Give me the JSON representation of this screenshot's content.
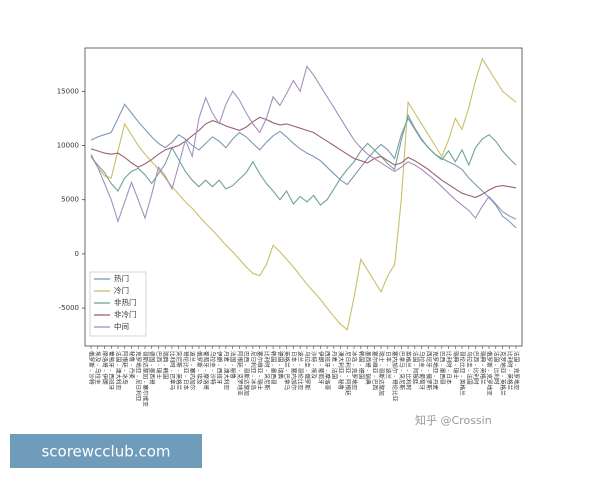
{
  "chart_data": {
    "type": "line",
    "categories": [
      "俄罗斯 - 沙特",
      "埃及 - 乌拉圭",
      "摩洛哥 - 伊朗",
      "葡萄牙 - 西班牙",
      "法国 - 澳大利亚",
      "阿根廷 - 冰岛",
      "秘鲁 - 丹麦",
      "克罗地亚 - 尼日利亚",
      "哥斯达黎加 - 塞尔维亚",
      "德国 - 墨西哥",
      "巴西 - 瑞士",
      "瑞典 - 韩国",
      "比利时 - 巴拿马",
      "突尼斯 - 英格兰",
      "哥伦比亚 - 日本",
      "波兰 - 塞内加尔",
      "俄罗斯 - 埃及",
      "葡萄牙 - 摩洛哥",
      "乌拉圭 - 沙特",
      "伊朗 - 西班牙",
      "丹麦 - 澳大利亚",
      "法国 - 秘鲁",
      "阿根廷 - 克罗地亚",
      "巴西 - 哥斯达黎加",
      "尼日利亚 - 冰岛",
      "塞尔维亚 - 瑞士",
      "比利时 - 突尼斯",
      "韩国 - 墨西哥",
      "德国 - 瑞典",
      "英格兰 - 巴拿马",
      "日本 - 塞内加尔",
      "波兰 - 哥伦比亚",
      "乌拉圭 - 俄罗斯",
      "沙特 - 埃及",
      "伊朗 - 葡萄牙",
      "西班牙 - 摩洛哥",
      "丹麦 - 法国",
      "澳大利亚 - 秘鲁",
      "尼日利亚 - 阿根廷",
      "冰岛 - 克罗地亚",
      "韩国 - 德国",
      "墨西哥 - 瑞典",
      "塞尔维亚 - 巴西",
      "瑞士 - 哥斯达黎加",
      "日本 - 波兰",
      "塞内加尔 - 哥伦比亚",
      "巴拿马 - 突尼斯",
      "英格兰 - 比利时",
      "法国 - 阿根廷",
      "乌拉圭 - 葡萄牙",
      "西班牙 - 俄罗斯",
      "克罗地亚 - 丹麦",
      "巴西 - 墨西哥",
      "比利时 - 日本",
      "瑞典 - 瑞士",
      "哥伦比亚 - 英格兰",
      "乌拉圭 - 法国",
      "巴西 - 比利时",
      "瑞典 - 英格兰",
      "俄罗斯 - 克罗地亚",
      "法国 - 比利时",
      "克罗地亚 - 英格兰",
      "比利时 - 英格兰",
      "法国 - 克罗地亚"
    ],
    "series": [
      {
        "name": "热门",
        "color": "#7f98b4",
        "values": [
          10500,
          10800,
          11000,
          11200,
          12500,
          13800,
          13000,
          12200,
          11500,
          10800,
          10200,
          9800,
          10300,
          11000,
          10600,
          10000,
          9600,
          10200,
          10800,
          10400,
          9800,
          10600,
          11200,
          10800,
          10200,
          9600,
          10300,
          10900,
          11300,
          10800,
          10200,
          9700,
          9300,
          9000,
          8600,
          8000,
          7400,
          6800,
          6400,
          7200,
          8000,
          8800,
          9500,
          10100,
          9600,
          8800,
          11000,
          12500,
          11500,
          10500,
          9800,
          9200,
          8800,
          8500,
          8200,
          7800,
          7000,
          6400,
          5800,
          5200,
          4500,
          3500,
          3000,
          2400
        ]
      },
      {
        "name": "冷门",
        "color": "#c8bf6a",
        "values": [
          9000,
          8000,
          7200,
          7000,
          9500,
          12000,
          11000,
          10000,
          9200,
          8500,
          7800,
          7000,
          6200,
          5500,
          4800,
          4200,
          3500,
          2800,
          2200,
          1500,
          800,
          200,
          -500,
          -1200,
          -1800,
          -2000,
          -1000,
          800,
          200,
          -500,
          -1200,
          -2000,
          -2800,
          -3500,
          -4200,
          -5000,
          -5800,
          -6500,
          -7000,
          -4000,
          -500,
          -1500,
          -2500,
          -3500,
          -2000,
          -1000,
          5000,
          14000,
          13000,
          12000,
          11000,
          10000,
          9000,
          10500,
          12500,
          11500,
          13500,
          16000,
          18000,
          17000,
          16000,
          15000,
          14500,
          14000
        ]
      },
      {
        "name": "非热门",
        "color": "#6fa396",
        "values": [
          9000,
          8200,
          7500,
          6500,
          5800,
          7000,
          7600,
          7900,
          7300,
          6500,
          7400,
          8300,
          9800,
          8700,
          7600,
          6800,
          6200,
          6800,
          6200,
          6800,
          6000,
          6300,
          6900,
          7500,
          8500,
          7400,
          6500,
          5800,
          5000,
          5800,
          4600,
          5300,
          4800,
          5400,
          4500,
          5000,
          6000,
          7000,
          7800,
          8500,
          9500,
          10200,
          9600,
          9000,
          8300,
          7800,
          10500,
          12800,
          11600,
          10600,
          9800,
          9200,
          8700,
          9500,
          8500,
          9600,
          8200,
          9800,
          10600,
          11000,
          10400,
          9500,
          8800,
          8200
        ]
      },
      {
        "name": "非冷门",
        "color": "#9c6270",
        "values": [
          9700,
          9500,
          9300,
          9200,
          9300,
          8900,
          8400,
          8000,
          8300,
          8700,
          9200,
          9600,
          9800,
          10000,
          10400,
          10900,
          11400,
          12000,
          12300,
          12100,
          11800,
          11600,
          11400,
          11700,
          12200,
          12600,
          12400,
          12100,
          11900,
          12000,
          11800,
          11600,
          11400,
          11200,
          10800,
          10400,
          10000,
          9600,
          9200,
          8800,
          8600,
          8400,
          8800,
          9000,
          8600,
          8200,
          8400,
          8900,
          8600,
          8200,
          7800,
          7300,
          6800,
          6400,
          6000,
          5600,
          5400,
          5200,
          5500,
          5900,
          6200,
          6300,
          6200,
          6100
        ]
      },
      {
        "name": "中间",
        "color": "#a58fbf",
        "values": [
          9200,
          8000,
          6500,
          5000,
          3000,
          4800,
          6600,
          5000,
          3300,
          5500,
          8000,
          7200,
          6000,
          8200,
          10500,
          9000,
          12500,
          14400,
          13000,
          12000,
          13800,
          15000,
          14200,
          13000,
          12000,
          11200,
          12500,
          14500,
          13700,
          14800,
          16000,
          15000,
          17300,
          16500,
          15500,
          14500,
          13500,
          12500,
          11500,
          10500,
          9800,
          9200,
          8800,
          8400,
          8000,
          7600,
          8000,
          8500,
          8200,
          7800,
          7300,
          6800,
          6200,
          5600,
          5000,
          4500,
          4000,
          3300,
          4400,
          5300,
          4600,
          3900,
          3500,
          3200
        ]
      }
    ],
    "ylim": [
      -8500,
      19000
    ],
    "yticks": [
      -5000,
      0,
      5000,
      10000,
      15000
    ],
    "grid": false,
    "legend": "lower left"
  },
  "watermark": "知乎 @Crossin",
  "banner": "scorewcclub.com"
}
